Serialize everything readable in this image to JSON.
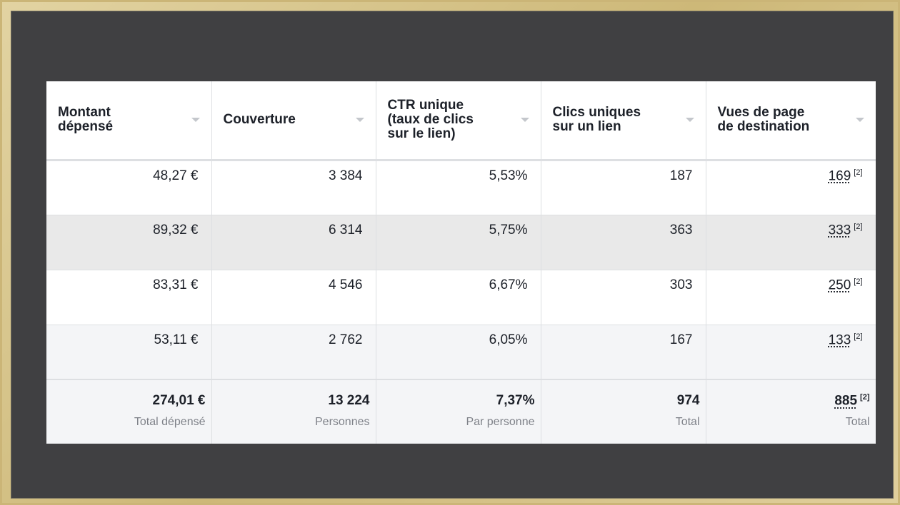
{
  "table": {
    "headers": [
      {
        "label": "Montant\ndépensé",
        "name": "header-montant-depense"
      },
      {
        "label": "Couverture",
        "name": "header-couverture"
      },
      {
        "label": "CTR unique\n(taux de clics\nsur le lien)",
        "name": "header-ctr-unique"
      },
      {
        "label": "Clics uniques\nsur un lien",
        "name": "header-clics-uniques"
      },
      {
        "label": "Vues de page\nde destination",
        "name": "header-vues-page"
      }
    ],
    "rows": [
      {
        "montant": "48,27 €",
        "couverture": "3 384",
        "ctr": "5,53%",
        "clics": "187",
        "vues": "169",
        "ref": "[2]"
      },
      {
        "montant": "89,32 €",
        "couverture": "6 314",
        "ctr": "5,75%",
        "clics": "363",
        "vues": "333",
        "ref": "[2]"
      },
      {
        "montant": "83,31 €",
        "couverture": "4 546",
        "ctr": "6,67%",
        "clics": "303",
        "vues": "250",
        "ref": "[2]"
      },
      {
        "montant": "53,11 €",
        "couverture": "2 762",
        "ctr": "6,05%",
        "clics": "167",
        "vues": "133",
        "ref": "[2]"
      }
    ],
    "totals": {
      "montant": {
        "value": "274,01 €",
        "caption": "Total dépensé"
      },
      "couverture": {
        "value": "13 224",
        "caption": "Personnes"
      },
      "ctr": {
        "value": "7,37%",
        "caption": "Par personne"
      },
      "clics": {
        "value": "974",
        "caption": "Total"
      },
      "vues": {
        "value": "885",
        "caption": "Total",
        "ref": "[2]"
      }
    }
  },
  "icons": {
    "sort": "sort-caret-down-icon"
  },
  "colors": {
    "frame": "#d9c690",
    "background": "#404042",
    "row_alt": "#e9e9e9",
    "row_light": "#f4f5f7",
    "text": "#1d2129",
    "caption": "#7f8289"
  }
}
